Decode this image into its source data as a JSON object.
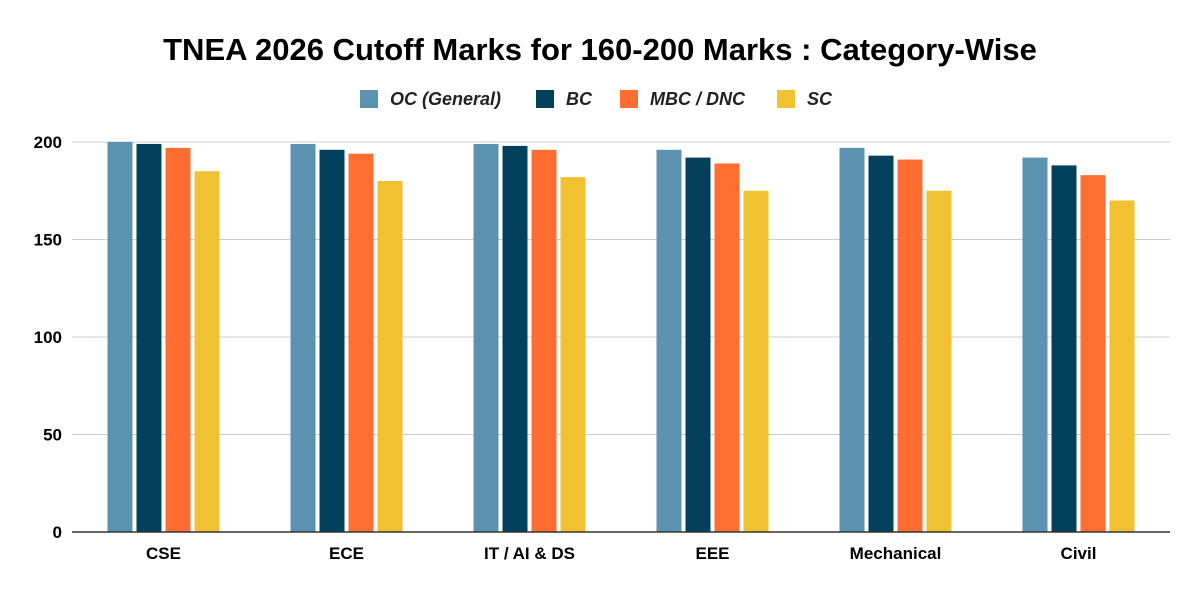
{
  "chart_data": {
    "type": "bar",
    "title": "TNEA 2026 Cutoff Marks for 160-200 Marks : Category-Wise",
    "xlabel": "",
    "ylabel": "",
    "categories": [
      "CSE",
      "ECE",
      "IT / AI & DS",
      "EEE",
      "Mechanical",
      "Civil"
    ],
    "series": [
      {
        "name": "OC (General)",
        "color": "#5b92b0",
        "values": [
          200,
          199,
          199,
          196,
          197,
          192
        ]
      },
      {
        "name": "BC",
        "color": "#03405c",
        "values": [
          199,
          196,
          198,
          192,
          193,
          188
        ]
      },
      {
        "name": "MBC / DNC",
        "color": "#ff6d31",
        "values": [
          197,
          194,
          196,
          189,
          191,
          183
        ]
      },
      {
        "name": "SC",
        "color": "#f0c232",
        "values": [
          185,
          180,
          182,
          175,
          175,
          170
        ]
      }
    ],
    "ylim": [
      0,
      200
    ],
    "yticks": [
      0,
      50,
      100,
      150,
      200
    ],
    "grid": true,
    "legend_position": "top-center"
  }
}
